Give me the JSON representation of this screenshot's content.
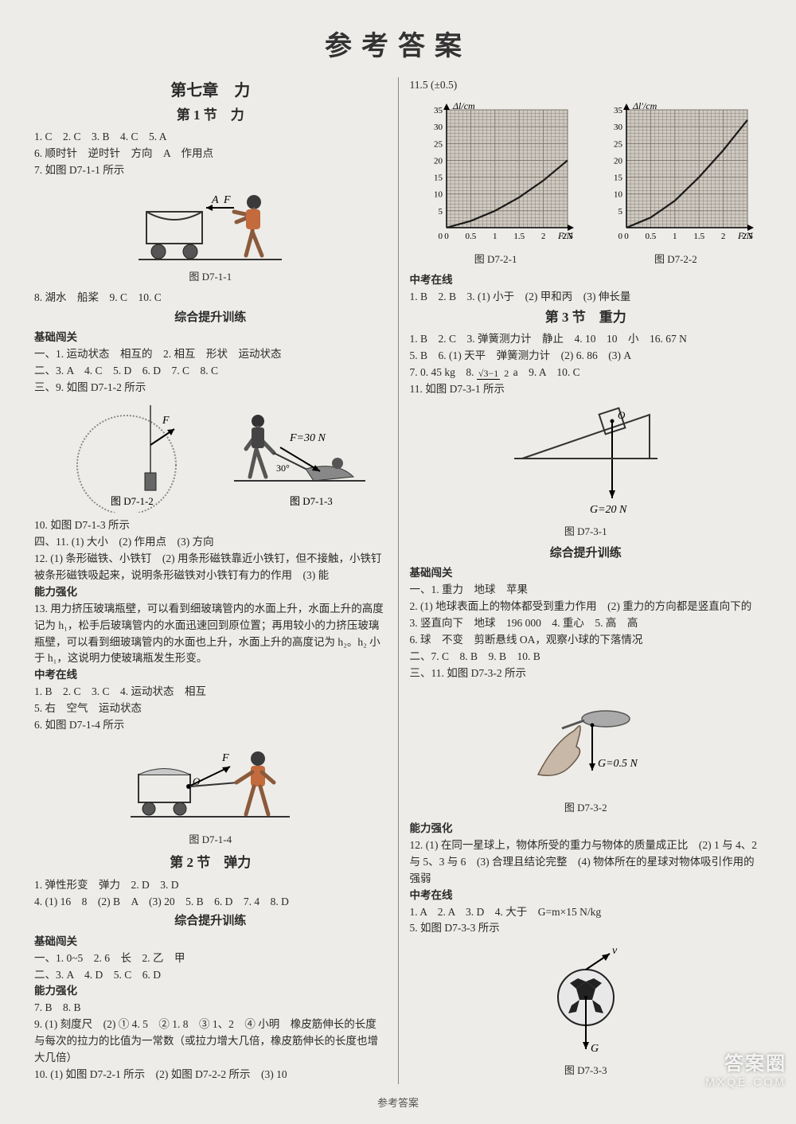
{
  "main_title": "参考答案",
  "footer": "参考答案",
  "watermark": {
    "top": "答案圈",
    "bottom": "MXQE.COM"
  },
  "left": {
    "chapter": "第七章　力",
    "sec1": {
      "title": "第 1 节　力",
      "line1": "1. C　2. C　3. B　4. C　5. A",
      "line2": "6. 顺时针　逆时针　方向　A　作用点",
      "line3": "7. 如图 D7-1-1 所示",
      "fig1_caption": "图 D7-1-1",
      "fig1_labels": {
        "A": "A",
        "F": "F"
      },
      "line4": "8. 湖水　船桨　9. C　10. C",
      "sub1": "综合提升训练",
      "base_h": "基础闯关",
      "bl1": "一、1. 运动状态　相互的　2. 相互　形状　运动状态",
      "bl2": "二、3. A　4. C　5. D　6. D　7. C　8. C",
      "bl3": "三、9. 如图 D7-1-2 所示",
      "fig2a_caption": "图 D7-1-2",
      "fig2b_caption": "图 D7-1-3",
      "fig2_labels": {
        "F": "F",
        "F30": "F=30 N",
        "angle": "30°"
      },
      "bl4": "10. 如图 D7-1-3 所示",
      "bl5": "四、11. (1) 大小　(2) 作用点　(3) 方向",
      "bl6": "12. (1) 条形磁铁、小铁钉　(2) 用条形磁铁靠近小铁钉，但不接触，小铁钉被条形磁铁吸起来，说明条形磁铁对小铁钉有力的作用　(3) 能",
      "abil_h": "能力强化",
      "ab1": "13. 用力挤压玻璃瓶壁，可以看到细玻璃管内的水面上升，水面上升的高度记为 h₁，松手后玻璃管内的水面迅速回到原位置；再用较小的力挤压玻璃瓶壁，可以看到细玻璃管内的水面也上升，水面上升的高度记为 h₂。h₂ 小于 h₁，这说明力使玻璃瓶发生形变。",
      "exam_h": "中考在线",
      "ex1": "1. B　2. C　3. C　4. 运动状态　相互",
      "ex2": "5. 右　空气　运动状态",
      "ex3": "6. 如图 D7-1-4 所示",
      "fig3_caption": "图 D7-1-4",
      "fig3_labels": {
        "F": "F",
        "O": "O"
      }
    },
    "sec2": {
      "title": "第 2 节　弹力",
      "line1": "1. 弹性形变　弹力　2. D　3. D",
      "line2": "4. (1) 16　8　(2) B　A　(3) 20　5. B　6. D　7. 4　8. D",
      "sub1": "综合提升训练",
      "base_h": "基础闯关",
      "bl1": "一、1. 0~5　2. 6　长　2. 乙　甲",
      "bl2": "二、3. A　4. D　5. C　6. D",
      "abil_h": "能力强化",
      "ab1": "7. B　8. B",
      "ab2": "9. (1) 刻度尺　(2) ① 4. 5　② 1. 8　③ 1、2　④ 小明　橡皮筋伸长的长度与每次的拉力的比值为一常数（或拉力增大几倍，橡皮筋伸长的长度也增大几倍）",
      "ab3": "10. (1) 如图 D7-2-1 所示　(2) 如图 D7-2-2 所示　(3) 10"
    }
  },
  "right": {
    "top_value": "11.5 (±0.5)",
    "chart1": {
      "type": "line",
      "yaxis": "Δl/cm",
      "xaxis": "F/N",
      "yticks": [
        5,
        10,
        15,
        20,
        25,
        30,
        35
      ],
      "xticks": [
        0,
        0.5,
        1,
        1.5,
        2,
        2.5
      ],
      "ymax": 35,
      "xmax": 2.5,
      "data_x": [
        0,
        0.5,
        1,
        1.5,
        2,
        2.5
      ],
      "data_y": [
        0,
        2,
        5,
        9,
        14,
        20
      ],
      "grid_bg": "#cfcac2",
      "grid_line": "#7a7267",
      "curve_color": "#1a1a1a",
      "caption": "图 D7-2-1"
    },
    "chart2": {
      "type": "line",
      "yaxis": "Δl'/cm",
      "xaxis": "F/N",
      "yticks": [
        5,
        10,
        15,
        20,
        25,
        30,
        35
      ],
      "xticks": [
        0,
        0.5,
        1,
        1.5,
        2,
        2.5
      ],
      "ymax": 35,
      "xmax": 2.5,
      "data_x": [
        0,
        0.5,
        1,
        1.5,
        2,
        2.5
      ],
      "data_y": [
        0,
        3,
        8,
        15,
        23,
        32
      ],
      "grid_bg": "#cfcac2",
      "grid_line": "#7a7267",
      "curve_color": "#1a1a1a",
      "caption": "图 D7-2-2"
    },
    "exam_h": "中考在线",
    "ex_line1": "1. B　2. B　3. (1) 小于　(2) 甲和丙　(3) 伸长量",
    "sec3": {
      "title": "第 3 节　重力",
      "line1": "1. B　2. C　3. 弹簧测力计　静止　4. 10　10　小　16. 67 N",
      "line2": "5. B　6. (1) 天平　弹簧测力计　(2) 6. 86　(3) A",
      "line3_pre": "7. 0. 45 kg　8. ",
      "frac_num": "√3−1",
      "frac_den": "2",
      "line3_post": "a　9. A　10. C",
      "line4": "11. 如图 D7-3-1 所示",
      "fig1_caption": "图 D7-3-1",
      "fig1_labels": {
        "O": "O",
        "G": "G=20 N"
      },
      "sub1": "综合提升训练",
      "base_h": "基础闯关",
      "bl1": "一、1. 重力　地球　苹果",
      "bl2": "2. (1) 地球表面上的物体都受到重力作用　(2) 重力的方向都是竖直向下的",
      "bl3": "3. 竖直向下　地球　196 000　4. 重心　5. 高　高",
      "bl4": "6. 球　不变　剪断悬线 OA，观察小球的下落情况",
      "bl5": "二、7. C　8. B　9. B　10. B",
      "bl6": "三、11. 如图 D7-3-2 所示",
      "fig2_caption": "图 D7-3-2",
      "fig2_label": "G=0.5 N",
      "abil_h": "能力强化",
      "ab1": "12. (1) 在同一星球上，物体所受的重力与物体的质量成正比　(2) 1 与 4、2 与 5、3 与 6　(3) 合理且结论完整　(4) 物体所在的星球对物体吸引作用的强弱",
      "exam_h": "中考在线",
      "ex1": "1. A　2. A　3. D　4. 大于　G=m×15 N/kg",
      "ex2": "5. 如图 D7-3-3 所示",
      "fig3_caption": "图 D7-3-3",
      "fig3_labels": {
        "v": "v",
        "G": "G"
      }
    }
  }
}
